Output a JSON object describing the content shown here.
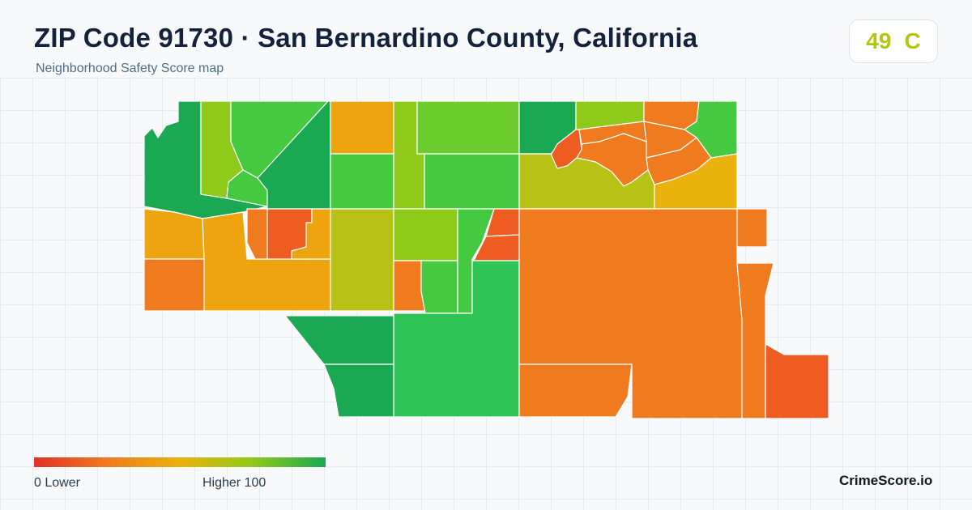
{
  "header": {
    "title": "ZIP Code 91730 · San Bernardino County, California",
    "subtitle": "Neighborhood Safety Score map"
  },
  "score": {
    "value": "49",
    "grade": "C",
    "color": "#b5c40c"
  },
  "legend": {
    "min_label": "0  Lower",
    "max_label": "Higher  100",
    "colors": [
      "#e0312a",
      "#f07a1e",
      "#e9b20c",
      "#8fc919",
      "#1aa853"
    ]
  },
  "brand": "CrimeScore.io",
  "map": {
    "palette": {
      "high": "#1aa853",
      "high_mid": "#2ec456",
      "good": "#45c940",
      "good_light": "#6ccc2e",
      "mid_green": "#8fc919",
      "olive": "#b8c116",
      "yellow": "#e9b20c",
      "amber": "#eda40f",
      "orange": "#f07a1e",
      "red_orange": "#ee5c22"
    }
  }
}
